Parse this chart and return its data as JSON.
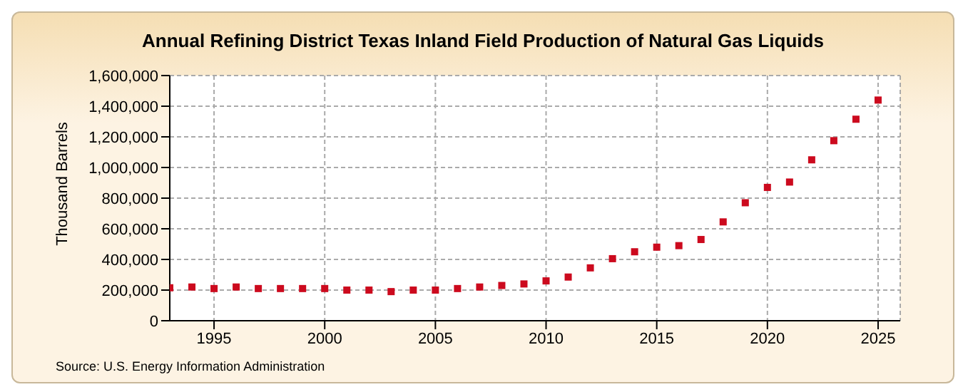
{
  "chart_data": {
    "type": "scatter",
    "title": "Annual Refining District Texas Inland Field Production of Natural Gas Liquids",
    "ylabel": "Thousand Barrels",
    "annotations": [
      "Source: U.S. Energy Information Administration"
    ],
    "x": [
      1993,
      1994,
      1995,
      1996,
      1997,
      1998,
      1999,
      2000,
      2001,
      2002,
      2003,
      2004,
      2005,
      2006,
      2007,
      2008,
      2009,
      2010,
      2011,
      2012,
      2013,
      2014,
      2015,
      2016,
      2017,
      2018,
      2019,
      2020,
      2021,
      2022,
      2023,
      2024,
      2025
    ],
    "series": [
      {
        "color": "#cc0a1e",
        "values": [
          215000,
          220000,
          210000,
          220000,
          210000,
          210000,
          210000,
          210000,
          200000,
          200000,
          190000,
          200000,
          200000,
          210000,
          220000,
          230000,
          240000,
          260000,
          285000,
          345000,
          405000,
          450000,
          480000,
          490000,
          530000,
          645000,
          770000,
          870000,
          905000,
          1050000,
          1175000,
          1315000,
          1440000
        ]
      }
    ],
    "xlim": [
      1993,
      2026
    ],
    "xticks": [
      1995,
      2000,
      2005,
      2010,
      2015,
      2020,
      2025
    ],
    "ylim": [
      0,
      1600000
    ],
    "yticks": [
      0,
      {
        "value": 200000,
        "label": "200,000"
      },
      {
        "value": 400000,
        "label": "400,000"
      },
      {
        "value": 600000,
        "label": "600,000"
      },
      {
        "value": 800000,
        "label": "800,000"
      },
      {
        "value": 1000000,
        "label": "1,000,000"
      },
      {
        "value": 1200000,
        "label": "1,200,000"
      },
      {
        "value": 1400000,
        "label": "1,400,000"
      },
      {
        "value": 1600000,
        "label": "1,600,000"
      }
    ],
    "grid": true,
    "marker": "square",
    "legend": false
  }
}
